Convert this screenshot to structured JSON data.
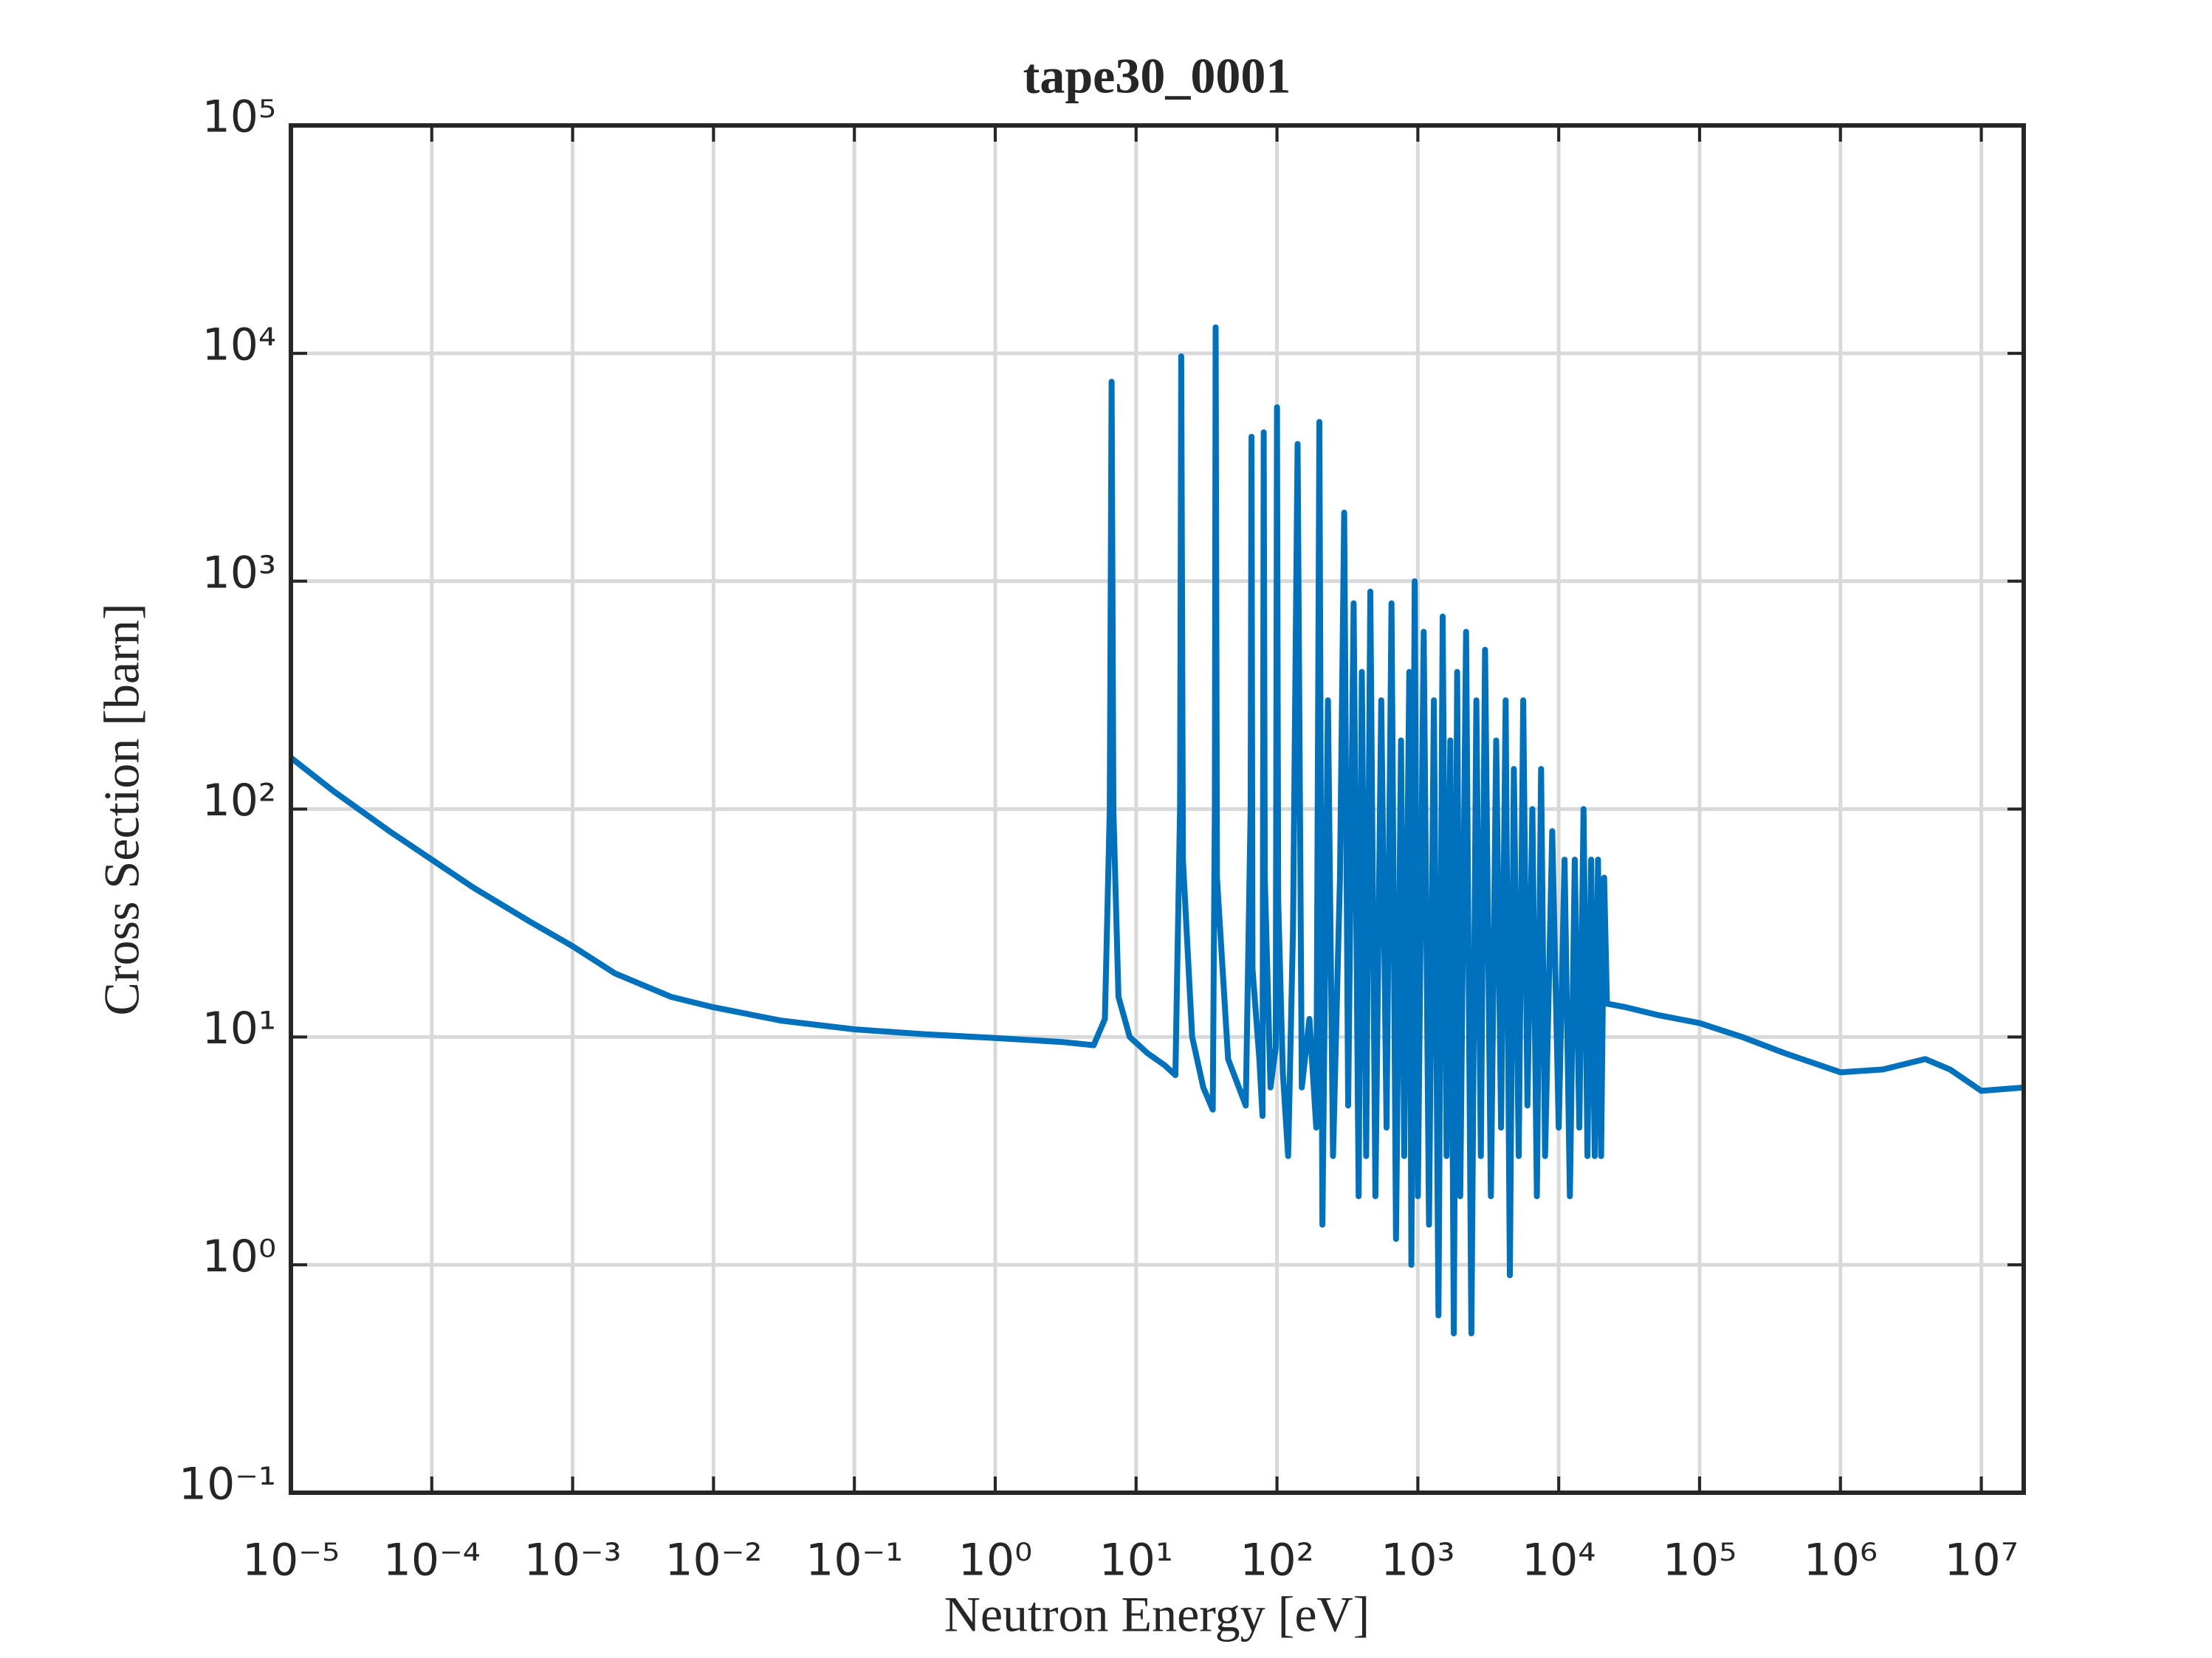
{
  "chart_data": {
    "type": "line",
    "title": "tape30_0001",
    "x_label": "Neutron Energy [eV]",
    "y_label": "Cross Section [barn]",
    "x_log": true,
    "y_log": true,
    "grid": true,
    "xlim": [
      1e-05,
      20000000
    ],
    "ylim": [
      0.1,
      100000
    ],
    "xticks": [
      {
        "value": 1e-05,
        "label": "10⁻⁵"
      },
      {
        "value": 0.0001,
        "label": "10⁻⁴"
      },
      {
        "value": 0.001,
        "label": "10⁻³"
      },
      {
        "value": 0.01,
        "label": "10⁻²"
      },
      {
        "value": 0.1,
        "label": "10⁻¹"
      },
      {
        "value": 1,
        "label": "10⁰"
      },
      {
        "value": 10,
        "label": "10¹"
      },
      {
        "value": 100,
        "label": "10²"
      },
      {
        "value": 1000,
        "label": "10³"
      },
      {
        "value": 10000,
        "label": "10⁴"
      },
      {
        "value": 100000,
        "label": "10⁵"
      },
      {
        "value": 1000000,
        "label": "10⁶"
      },
      {
        "value": 10000000,
        "label": "10⁷"
      }
    ],
    "yticks": [
      {
        "value": 0.1,
        "label": "10⁻¹"
      },
      {
        "value": 1,
        "label": "10⁰"
      },
      {
        "value": 10,
        "label": "10¹"
      },
      {
        "value": 100,
        "label": "10²"
      },
      {
        "value": 1000,
        "label": "10³"
      },
      {
        "value": 10000,
        "label": "10⁴"
      },
      {
        "value": 100000,
        "label": "10⁵"
      }
    ],
    "series": [
      {
        "color": "#0072bd",
        "x": [
          1e-05,
          2e-05,
          5e-05,
          0.0001,
          0.0002,
          0.0005,
          0.001,
          0.002,
          0.005,
          0.01,
          0.03,
          0.1,
          0.3,
          1,
          3,
          5,
          6,
          6.5,
          6.7,
          6.9,
          7.5,
          9,
          12,
          16,
          19,
          20.5,
          20.9,
          21.5,
          25,
          30,
          35,
          36.2,
          36.7,
          37.5,
          45,
          60,
          65,
          66,
          67,
          75,
          79,
          80.5,
          82,
          90,
          98,
          100,
          102,
          110,
          120,
          130,
          140,
          150,
          170,
          190,
          200,
          210,
          230,
          250,
          280,
          300,
          320,
          350,
          380,
          400,
          430,
          460,
          500,
          550,
          600,
          650,
          700,
          760,
          800,
          870,
          900,
          950,
          1000,
          1100,
          1200,
          1300,
          1400,
          1500,
          1600,
          1700,
          1800,
          1900,
          2000,
          2200,
          2400,
          2600,
          2800,
          3000,
          3300,
          3600,
          3900,
          4200,
          4500,
          4800,
          5200,
          5600,
          6000,
          6500,
          7000,
          7500,
          8000,
          9000,
          10000,
          11000,
          12000,
          13000,
          14000,
          15000,
          16000,
          17000,
          18000,
          19000,
          20000,
          21000,
          22000,
          30000,
          50000,
          100000,
          200000,
          400000,
          1000000,
          2000000,
          4000000,
          6000000,
          10000000,
          20000000
        ],
        "values": [
          168,
          120,
          80,
          60,
          45,
          32,
          25,
          19,
          15,
          13.5,
          11.8,
          10.8,
          10.3,
          9.9,
          9.5,
          9.2,
          12,
          100,
          7500,
          100,
          15,
          10,
          8.5,
          7.5,
          6.8,
          100,
          9700,
          60,
          10,
          6,
          4.8,
          100,
          13000,
          50,
          8,
          5,
          100,
          4300,
          20,
          8,
          4.5,
          4500,
          50,
          6,
          9,
          5800,
          40,
          7,
          3,
          30,
          4000,
          6,
          12,
          4,
          5000,
          1.5,
          300,
          3,
          50,
          2000,
          5,
          800,
          2,
          400,
          3,
          900,
          2,
          300,
          4,
          800,
          1.3,
          200,
          3,
          400,
          1,
          1000,
          2,
          600,
          1.5,
          300,
          0.6,
          700,
          3,
          200,
          0.5,
          400,
          2,
          600,
          0.5,
          300,
          3,
          500,
          2,
          200,
          4,
          300,
          0.9,
          150,
          3,
          300,
          5,
          100,
          2,
          150,
          3,
          80,
          4,
          60,
          2,
          60,
          4,
          100,
          3,
          60,
          3,
          60,
          3,
          50,
          14,
          13.5,
          12.5,
          11.5,
          10,
          8.5,
          7,
          7.2,
          8,
          7.2,
          5.8,
          6
        ]
      }
    ]
  }
}
